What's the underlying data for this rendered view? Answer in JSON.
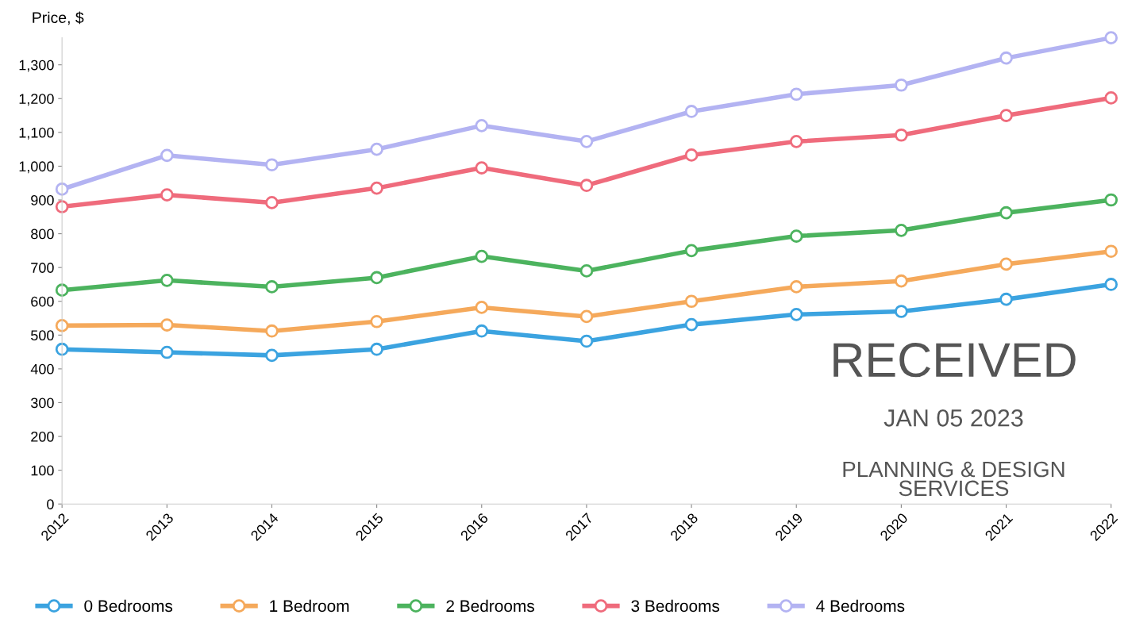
{
  "chart_data": {
    "type": "line",
    "ylabel": "Price, $",
    "categories": [
      "2012",
      "2013",
      "2014",
      "2015",
      "2016",
      "2017",
      "2018",
      "2019",
      "2020",
      "2021",
      "2022"
    ],
    "series": [
      {
        "name": "0 Bedrooms",
        "color": "#3ba3e0",
        "values": [
          458,
          449,
          440,
          458,
          512,
          482,
          531,
          561,
          570,
          606,
          650
        ]
      },
      {
        "name": "1 Bedroom",
        "color": "#f5a95b",
        "values": [
          528,
          530,
          512,
          540,
          582,
          555,
          600,
          643,
          660,
          710,
          748
        ]
      },
      {
        "name": "2 Bedrooms",
        "color": "#4cb35e",
        "values": [
          633,
          662,
          643,
          670,
          733,
          690,
          750,
          793,
          810,
          862,
          900
        ]
      },
      {
        "name": "3 Bedrooms",
        "color": "#ef6b7c",
        "values": [
          880,
          915,
          892,
          935,
          995,
          943,
          1033,
          1073,
          1092,
          1150,
          1202
        ]
      },
      {
        "name": "4 Bedrooms",
        "color": "#b3b3f2",
        "values": [
          932,
          1032,
          1004,
          1050,
          1120,
          1073,
          1162,
          1213,
          1240,
          1320,
          1380
        ]
      }
    ],
    "ylim": [
      0,
      1380
    ],
    "yticks": [
      0,
      100,
      200,
      300,
      400,
      500,
      600,
      700,
      800,
      900,
      {
        "value": 1000,
        "label": "1,000"
      },
      {
        "value": 1100,
        "label": "1,100"
      },
      {
        "value": 1200,
        "label": "1,200"
      },
      {
        "value": 1300,
        "label": "1,300"
      }
    ],
    "marker": "circle",
    "line_style": "solid",
    "grid": false,
    "legend": "bottom",
    "annotations": [
      "RECEIVED",
      "JAN 05 2023",
      "PLANNING & DESIGN\nSERVICES"
    ]
  }
}
